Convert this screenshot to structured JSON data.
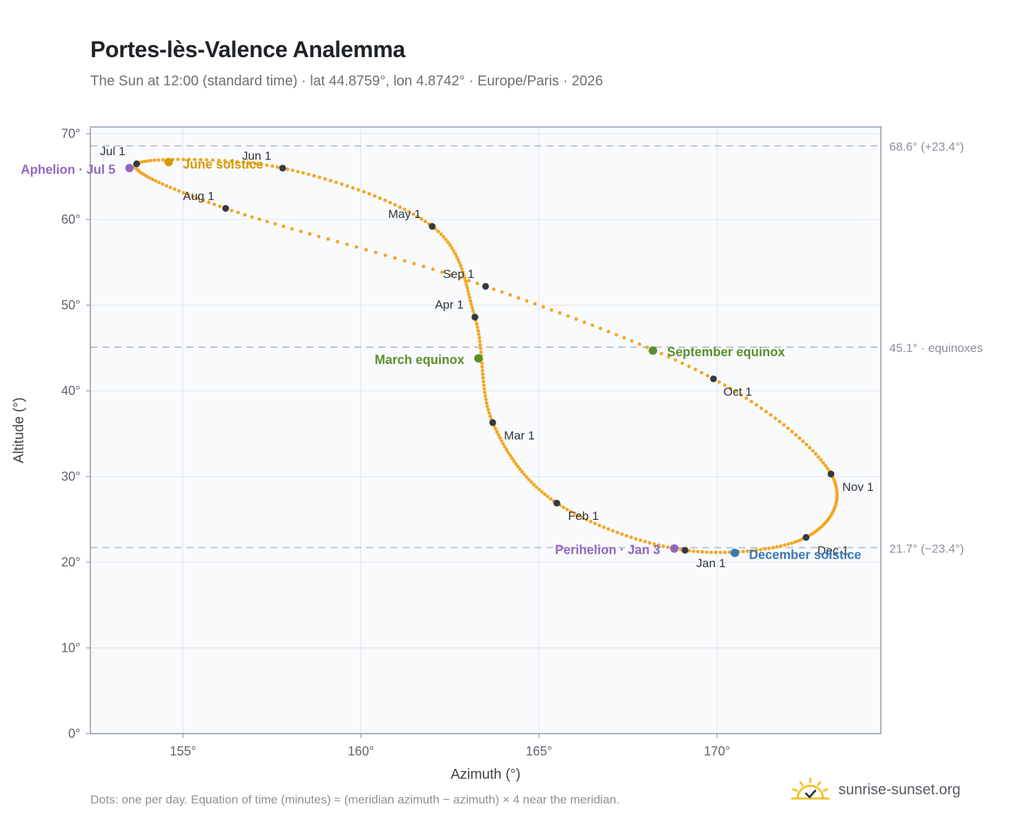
{
  "header": {
    "title": "Portes-lès-Valence Analemma",
    "subtitle": "The Sun at 12:00 (standard time) · lat 44.8759°, lon 4.8742° · Europe/Paris · 2026"
  },
  "footnote": "Dots: one per day. Equation of time (minutes) ≈ (meridian azimuth − azimuth) × 4 near the meridian.",
  "brand": {
    "name": "sunrise-sunset.org",
    "icon": "sun-logo-icon"
  },
  "colors": {
    "curve": "#f5a623",
    "month_marker": "#343a40",
    "solstice_june": "#d79a06",
    "solstice_december": "#3a78b8",
    "equinox": "#5b8f2e",
    "apsis": "#9467bd",
    "reference_line": "#b8bec6",
    "plot_bg": "#f8fafc",
    "axis": "#8e9aa6"
  },
  "chart_data": {
    "type": "scatter",
    "xlabel": "Azimuth (°)",
    "ylabel": "Altitude (°)",
    "xlim": [
      152.4,
      174.6
    ],
    "ylim": [
      0,
      70.8
    ],
    "x_ticks": [
      155,
      160,
      165,
      170
    ],
    "x_tick_labels": [
      "155°",
      "160°",
      "165°",
      "170°"
    ],
    "y_ticks": [
      0,
      10,
      20,
      30,
      40,
      50,
      60,
      70
    ],
    "y_tick_labels": [
      "0°",
      "10°",
      "20°",
      "30°",
      "40°",
      "50°",
      "60°",
      "70°"
    ],
    "grid": true,
    "series": [
      {
        "style": "dots, one per day",
        "anchors": [
          {
            "date": "Jan 1",
            "azimuth": 169.1,
            "altitude": 21.4
          },
          {
            "date": "Feb 1",
            "azimuth": 165.5,
            "altitude": 26.9
          },
          {
            "date": "Mar 1",
            "azimuth": 163.7,
            "altitude": 36.3
          },
          {
            "date": "Apr 1",
            "azimuth": 163.2,
            "altitude": 48.6
          },
          {
            "date": "May 1",
            "azimuth": 162.0,
            "altitude": 59.2
          },
          {
            "date": "Jun 1",
            "azimuth": 157.8,
            "altitude": 66.0
          },
          {
            "date": "Jul 1",
            "azimuth": 153.7,
            "altitude": 66.5
          },
          {
            "date": "Aug 1",
            "azimuth": 156.2,
            "altitude": 61.3
          },
          {
            "date": "Sep 1",
            "azimuth": 163.5,
            "altitude": 52.2
          },
          {
            "date": "Oct 1",
            "azimuth": 169.9,
            "altitude": 41.4
          },
          {
            "date": "Nov 1",
            "azimuth": 173.2,
            "altitude": 30.3
          },
          {
            "date": "Dec 1",
            "azimuth": 172.5,
            "altitude": 22.9
          }
        ]
      }
    ],
    "month_markers": [
      {
        "label": "Jan 1",
        "azimuth": 169.1,
        "altitude": 21.4,
        "anchor": "start",
        "dx": 16,
        "dy": 24
      },
      {
        "label": "Feb 1",
        "azimuth": 165.5,
        "altitude": 26.9,
        "anchor": "start",
        "dx": 16,
        "dy": 24
      },
      {
        "label": "Mar 1",
        "azimuth": 163.7,
        "altitude": 36.3,
        "anchor": "start",
        "dx": 16,
        "dy": 24
      },
      {
        "label": "Apr 1",
        "azimuth": 163.2,
        "altitude": 48.6,
        "anchor": "end",
        "dx": -16,
        "dy": -12
      },
      {
        "label": "May 1",
        "azimuth": 162.0,
        "altitude": 59.2,
        "anchor": "end",
        "dx": -16,
        "dy": -12
      },
      {
        "label": "Jun 1",
        "azimuth": 157.8,
        "altitude": 66.0,
        "anchor": "end",
        "dx": -16,
        "dy": -12
      },
      {
        "label": "Jul 1",
        "azimuth": 153.7,
        "altitude": 66.5,
        "anchor": "end",
        "dx": -16,
        "dy": -12
      },
      {
        "label": "Aug 1",
        "azimuth": 156.2,
        "altitude": 61.3,
        "anchor": "end",
        "dx": -16,
        "dy": -12
      },
      {
        "label": "Sep 1",
        "azimuth": 163.5,
        "altitude": 52.2,
        "anchor": "end",
        "dx": -16,
        "dy": -12
      },
      {
        "label": "Oct 1",
        "azimuth": 169.9,
        "altitude": 41.4,
        "anchor": "start",
        "dx": 14,
        "dy": 24
      },
      {
        "label": "Nov 1",
        "azimuth": 173.2,
        "altitude": 30.3,
        "anchor": "start",
        "dx": 16,
        "dy": 24
      },
      {
        "label": "Dec 1",
        "azimuth": 172.5,
        "altitude": 22.9,
        "anchor": "start",
        "dx": 16,
        "dy": 24
      }
    ],
    "events": [
      {
        "label": "June solstice",
        "azimuth": 154.6,
        "altitude": 66.7,
        "color": "solstice_june",
        "anchor": "start",
        "dx": 20,
        "dy": 9
      },
      {
        "label": "December solstice",
        "azimuth": 170.5,
        "altitude": 21.1,
        "color": "solstice_december",
        "anchor": "start",
        "dx": 20,
        "dy": 9
      },
      {
        "label": "March equinox",
        "azimuth": 163.3,
        "altitude": 43.8,
        "color": "equinox",
        "anchor": "end",
        "dx": -20,
        "dy": 8
      },
      {
        "label": "September equinox",
        "azimuth": 168.2,
        "altitude": 44.7,
        "color": "equinox",
        "anchor": "start",
        "dx": 20,
        "dy": 8
      },
      {
        "label": "Aphelion · Jul 5",
        "azimuth": 153.5,
        "altitude": 66.0,
        "color": "apsis",
        "anchor": "end",
        "dx": -20,
        "dy": 8
      },
      {
        "label": "Perihelion · Jan 3",
        "azimuth": 168.8,
        "altitude": 21.6,
        "color": "apsis",
        "anchor": "end",
        "dx": -20,
        "dy": 8
      }
    ],
    "reference_lines": [
      {
        "altitude": 68.6,
        "label": "68.6° (+23.4°)"
      },
      {
        "altitude": 45.1,
        "label": "45.1° · equinoxes"
      },
      {
        "altitude": 21.7,
        "label": "21.7° (−23.4°)"
      }
    ]
  }
}
